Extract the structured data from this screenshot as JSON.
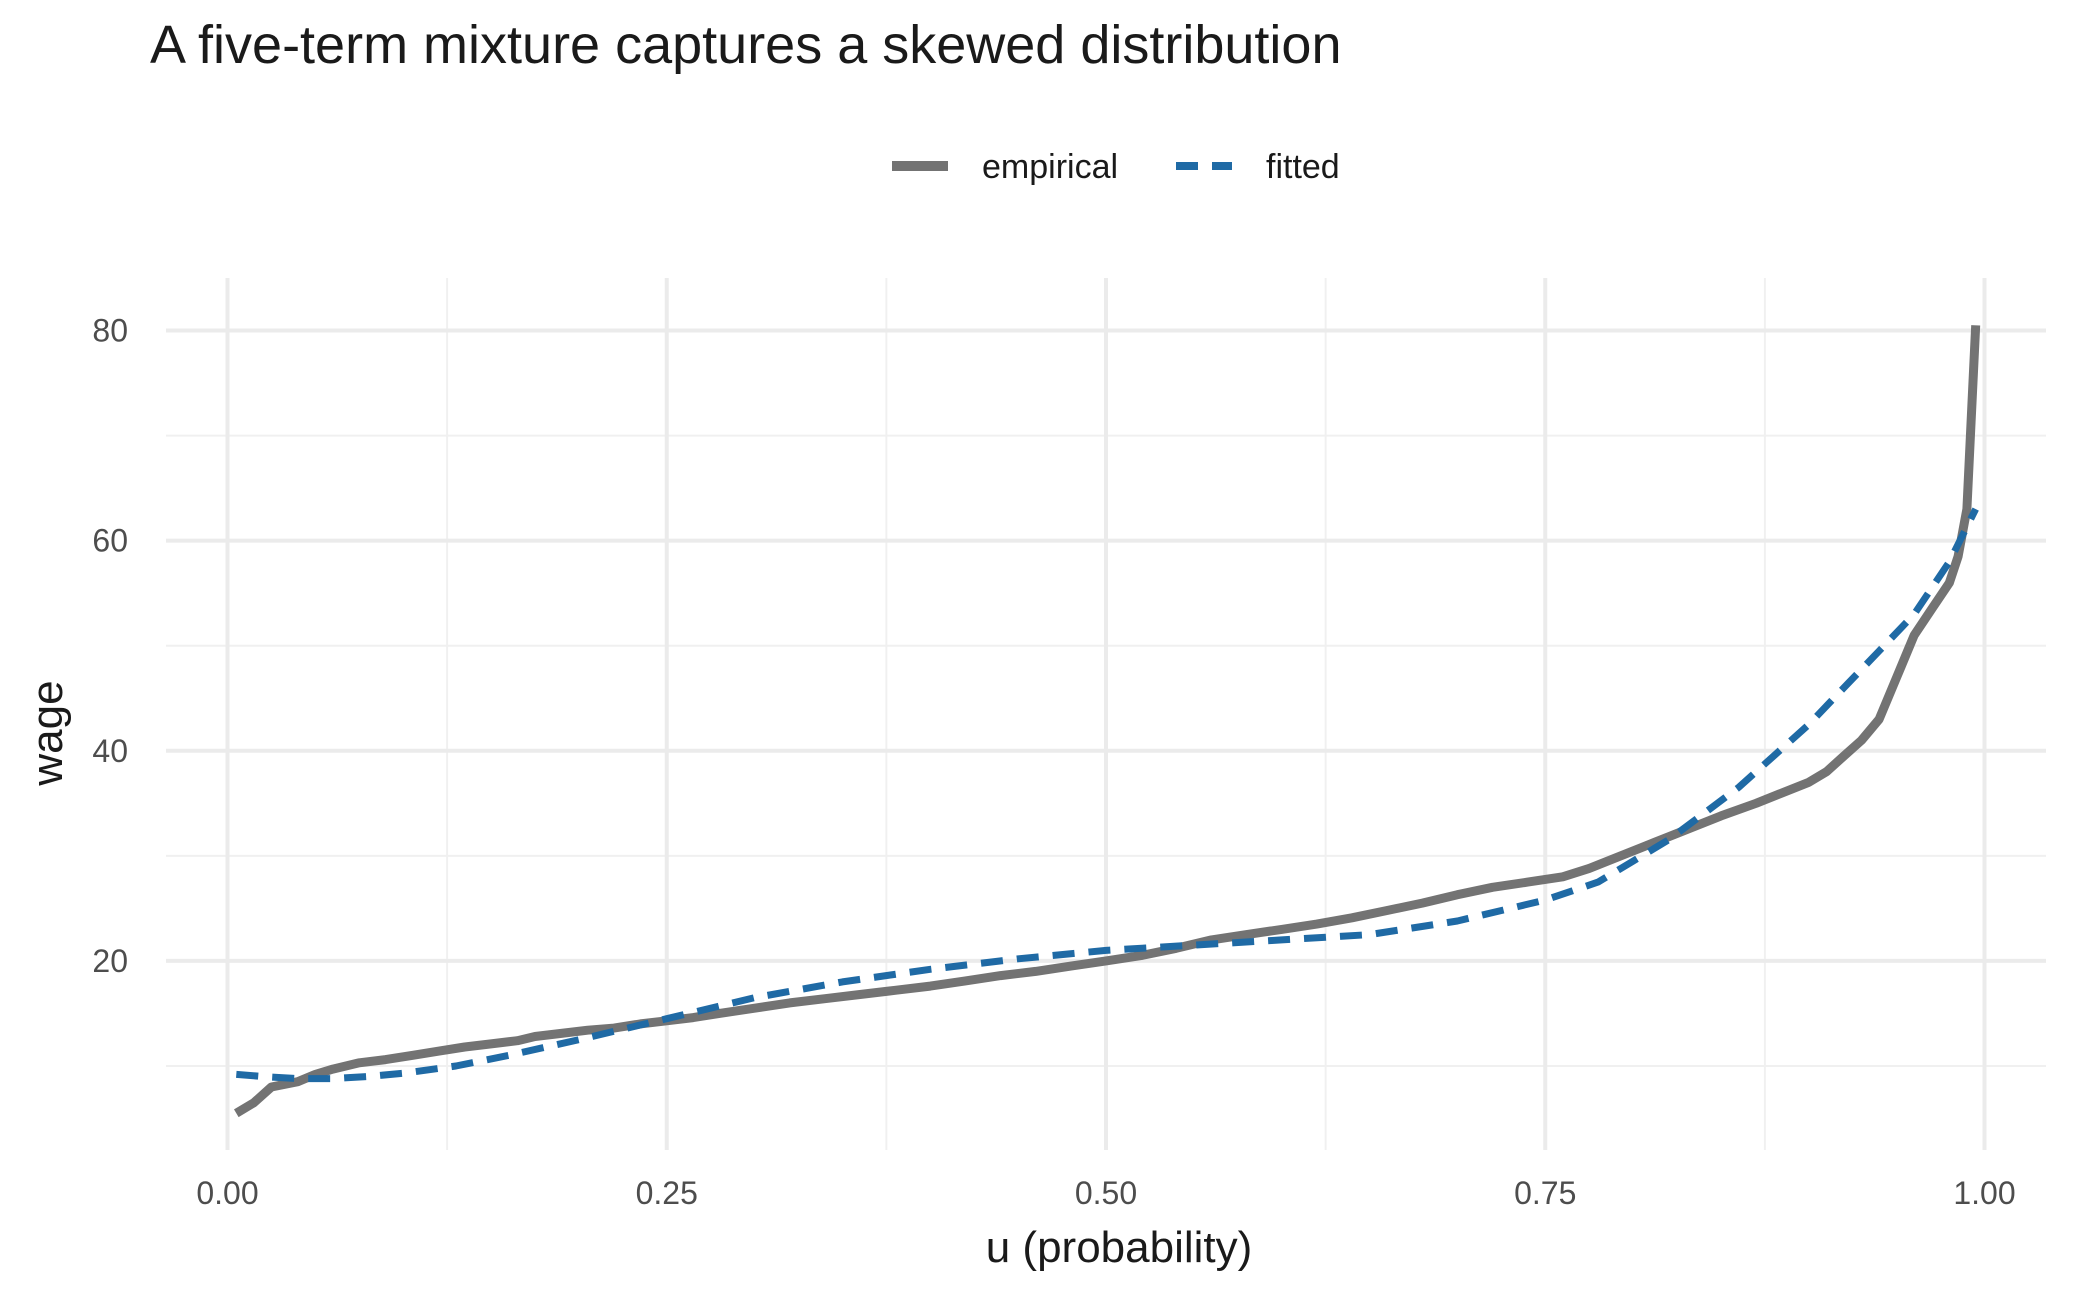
{
  "chart_data": {
    "type": "line",
    "title": "A five-term mixture captures a skewed distribution",
    "xlabel": "u (probability)",
    "ylabel": "wage",
    "xlim": [
      -0.035,
      1.035
    ],
    "ylim": [
      2,
      85
    ],
    "x_ticks": [
      0.0,
      0.25,
      0.5,
      0.75,
      1.0
    ],
    "x_tick_labels": [
      "0.00",
      "0.25",
      "0.50",
      "0.75",
      "1.00"
    ],
    "y_ticks": [
      20,
      40,
      60,
      80
    ],
    "y_tick_labels": [
      "20",
      "40",
      "60",
      "80"
    ],
    "grid": true,
    "legend_position": "top",
    "series": [
      {
        "name": "empirical",
        "color": "#737373",
        "style": "solid",
        "x": [
          0.005,
          0.015,
          0.025,
          0.04,
          0.05,
          0.06,
          0.075,
          0.09,
          0.105,
          0.12,
          0.135,
          0.15,
          0.165,
          0.175,
          0.19,
          0.205,
          0.22,
          0.235,
          0.25,
          0.265,
          0.28,
          0.3,
          0.32,
          0.34,
          0.36,
          0.38,
          0.4,
          0.42,
          0.44,
          0.46,
          0.48,
          0.5,
          0.52,
          0.54,
          0.56,
          0.58,
          0.6,
          0.62,
          0.64,
          0.66,
          0.68,
          0.7,
          0.72,
          0.74,
          0.76,
          0.775,
          0.79,
          0.805,
          0.82,
          0.835,
          0.85,
          0.87,
          0.885,
          0.9,
          0.91,
          0.92,
          0.93,
          0.94,
          0.95,
          0.96,
          0.97,
          0.98,
          0.985,
          0.99,
          0.995
        ],
        "y": [
          5.5,
          6.5,
          8.0,
          8.5,
          9.2,
          9.7,
          10.3,
          10.6,
          11.0,
          11.4,
          11.8,
          12.1,
          12.4,
          12.8,
          13.1,
          13.4,
          13.6,
          14.0,
          14.3,
          14.6,
          15.0,
          15.5,
          16.0,
          16.4,
          16.8,
          17.2,
          17.6,
          18.1,
          18.6,
          19.0,
          19.5,
          20.0,
          20.5,
          21.2,
          22.0,
          22.5,
          23.0,
          23.5,
          24.1,
          24.8,
          25.5,
          26.3,
          27.0,
          27.5,
          28.0,
          28.8,
          29.8,
          30.8,
          31.8,
          32.8,
          33.8,
          35.0,
          36.0,
          37.0,
          38.0,
          39.5,
          41.0,
          43.0,
          47.0,
          51.0,
          53.5,
          56.0,
          58.5,
          63.0,
          80.5
        ]
      },
      {
        "name": "fitted",
        "color": "#1f6aa5",
        "style": "dashed",
        "x": [
          0.005,
          0.02,
          0.04,
          0.06,
          0.08,
          0.1,
          0.13,
          0.16,
          0.2,
          0.25,
          0.3,
          0.35,
          0.4,
          0.45,
          0.5,
          0.55,
          0.6,
          0.65,
          0.7,
          0.75,
          0.78,
          0.8,
          0.82,
          0.84,
          0.86,
          0.88,
          0.9,
          0.92,
          0.94,
          0.96,
          0.98,
          0.995
        ],
        "y": [
          9.2,
          9.0,
          8.8,
          8.8,
          9.0,
          9.3,
          10.0,
          11.0,
          12.5,
          14.5,
          16.5,
          18.0,
          19.2,
          20.2,
          21.0,
          21.5,
          22.0,
          22.5,
          23.8,
          25.8,
          27.5,
          29.5,
          31.5,
          34.0,
          36.5,
          39.5,
          42.5,
          46.0,
          49.5,
          53.0,
          58.0,
          63.0
        ]
      }
    ]
  }
}
